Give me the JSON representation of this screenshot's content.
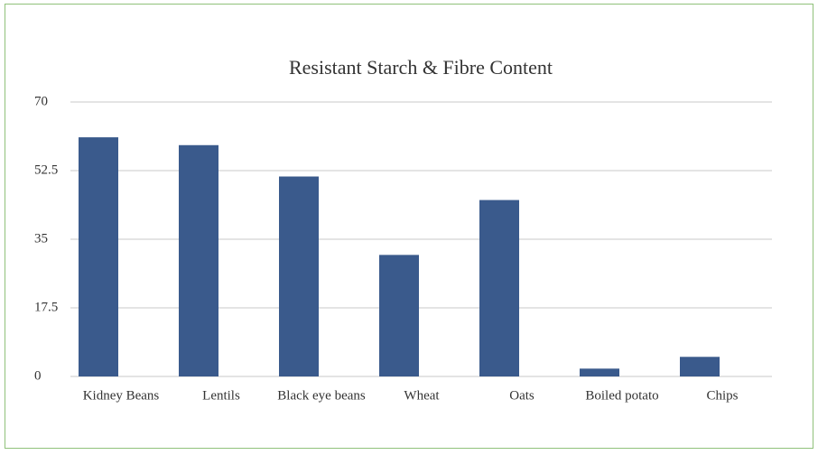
{
  "chart_data": {
    "type": "bar",
    "title": "Resistant Starch & Fibre Content",
    "categories": [
      "Kidney Beans",
      "Lentils",
      "Black eye beans",
      "Wheat",
      "Oats",
      "Boiled potato",
      "Chips"
    ],
    "values": [
      61,
      59,
      51,
      31,
      45,
      2,
      5
    ],
    "color": "#3a5a8c",
    "ylim": [
      0,
      70
    ],
    "yticks": [
      0,
      17.5,
      35,
      52.5,
      70
    ],
    "grid": true
  }
}
